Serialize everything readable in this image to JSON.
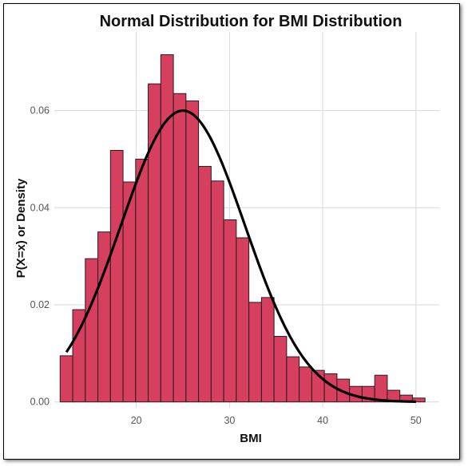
{
  "chart_data": {
    "type": "bar",
    "title": "Normal Distribution for BMI Distribution",
    "xlabel": "BMI",
    "ylabel": "P(X=x) or Density",
    "xlim": [
      11.2,
      52.5
    ],
    "ylim": [
      -0.0012,
      0.0762
    ],
    "x_ticks": [
      20,
      30,
      40,
      50
    ],
    "y_ticks": [
      0.0,
      0.02,
      0.04,
      0.06
    ],
    "y_tick_labels": [
      "0.00",
      "0.02",
      "0.04",
      "0.06"
    ],
    "grid": true,
    "bar_color": "#d6405e",
    "bar_edge_color": "#2a1a1e",
    "bin_width": 1.35,
    "bins": [
      {
        "x": 12.5,
        "value": 0.0095
      },
      {
        "x": 13.85,
        "value": 0.019
      },
      {
        "x": 15.2,
        "value": 0.0295
      },
      {
        "x": 16.55,
        "value": 0.035
      },
      {
        "x": 17.9,
        "value": 0.0518
      },
      {
        "x": 19.25,
        "value": 0.0453
      },
      {
        "x": 20.6,
        "value": 0.05
      },
      {
        "x": 21.95,
        "value": 0.0655
      },
      {
        "x": 23.3,
        "value": 0.0715
      },
      {
        "x": 24.65,
        "value": 0.0635
      },
      {
        "x": 26.0,
        "value": 0.062
      },
      {
        "x": 27.35,
        "value": 0.0485
      },
      {
        "x": 28.7,
        "value": 0.0455
      },
      {
        "x": 30.05,
        "value": 0.0375
      },
      {
        "x": 31.4,
        "value": 0.0338
      },
      {
        "x": 32.75,
        "value": 0.0205
      },
      {
        "x": 34.1,
        "value": 0.0215
      },
      {
        "x": 35.45,
        "value": 0.0135
      },
      {
        "x": 36.8,
        "value": 0.0093
      },
      {
        "x": 38.15,
        "value": 0.0072
      },
      {
        "x": 39.5,
        "value": 0.0065
      },
      {
        "x": 40.85,
        "value": 0.0058
      },
      {
        "x": 42.2,
        "value": 0.0047
      },
      {
        "x": 43.55,
        "value": 0.0032
      },
      {
        "x": 44.9,
        "value": 0.0032
      },
      {
        "x": 46.25,
        "value": 0.0055
      },
      {
        "x": 47.6,
        "value": 0.0024
      },
      {
        "x": 48.95,
        "value": 0.0014
      },
      {
        "x": 50.3,
        "value": 0.0008
      }
    ],
    "curve": {
      "type": "normal",
      "mean": 25.0,
      "sd": 6.65,
      "x_range": [
        12.5,
        50.0
      ],
      "color": "#000000"
    }
  }
}
